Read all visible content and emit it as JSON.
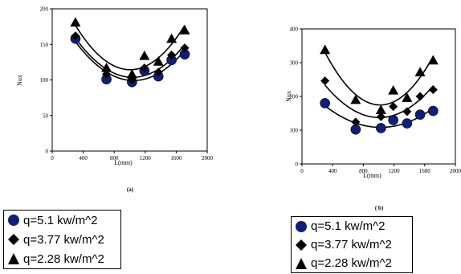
{
  "chart_data": [
    {
      "type": "scatter",
      "panel_label": "(a)",
      "title": "",
      "xlabel": "L(mm)",
      "ylabel": "Nux",
      "xlim": [
        0,
        2000
      ],
      "ylim": [
        0,
        200
      ],
      "xticks": [
        0,
        400,
        800,
        1200,
        1600,
        2000
      ],
      "yticks": [
        0,
        50,
        100,
        150,
        200
      ],
      "grid": false,
      "trendline": "polynomial",
      "series": [
        {
          "name": "q=5.1 kw/m^2",
          "marker": "circle",
          "color": "#0f1e7a",
          "x": [
            300,
            700,
            1030,
            1190,
            1370,
            1540,
            1710
          ],
          "y": [
            158,
            101,
            97,
            113,
            105,
            128,
            136
          ]
        },
        {
          "name": "q=3.77 kw/m^2",
          "marker": "diamond",
          "color": "#000000",
          "x": [
            300,
            700,
            1030,
            1190,
            1370,
            1540,
            1710
          ],
          "y": [
            162,
            108,
            100,
            117,
            111,
            135,
            145
          ]
        },
        {
          "name": "q=2.28 kw/m^2",
          "marker": "triangle",
          "color": "#000000",
          "x": [
            300,
            700,
            1030,
            1190,
            1370,
            1540,
            1710
          ],
          "y": [
            181,
            117,
            108,
            134,
            126,
            158,
            170
          ]
        }
      ]
    },
    {
      "type": "scatter",
      "panel_label": "( b)",
      "title": "",
      "xlabel": "L(mm)",
      "ylabel": "Nux",
      "xlim": [
        0,
        2000
      ],
      "ylim": [
        0,
        400
      ],
      "xticks": [
        0,
        400,
        800,
        1200,
        1600,
        2000
      ],
      "yticks": [
        0,
        100,
        200,
        300,
        400
      ],
      "grid": false,
      "trendline": "polynomial",
      "series": [
        {
          "name": "q=5.1 kw/m^2",
          "marker": "circle",
          "color": "#0f1e7a",
          "x": [
            300,
            700,
            1030,
            1190,
            1370,
            1540,
            1710
          ],
          "y": [
            180,
            102,
            106,
            130,
            120,
            146,
            157
          ]
        },
        {
          "name": "q=3.77 kw/m^2",
          "marker": "diamond",
          "color": "#000000",
          "x": [
            300,
            700,
            1030,
            1190,
            1370,
            1540,
            1710
          ],
          "y": [
            246,
            124,
            140,
            170,
            155,
            200,
            220
          ]
        },
        {
          "name": "q=2.28 kw/m^2",
          "marker": "triangle",
          "color": "#000000",
          "x": [
            300,
            700,
            1030,
            1190,
            1370,
            1540,
            1710
          ],
          "y": [
            338,
            190,
            160,
            218,
            196,
            272,
            307
          ]
        }
      ]
    }
  ],
  "legends": [
    {
      "items": [
        {
          "label": "q=5.1 kw/m^2"
        },
        {
          "label": "q=3.77 kw/m^2"
        },
        {
          "label": "q=2.28 kw/m^2"
        }
      ]
    },
    {
      "items": [
        {
          "label": "q=5.1 kw/m^2"
        },
        {
          "label": "q=3.77 kw/m^2"
        },
        {
          "label": "q=2.28 kw/m^2"
        }
      ]
    }
  ]
}
